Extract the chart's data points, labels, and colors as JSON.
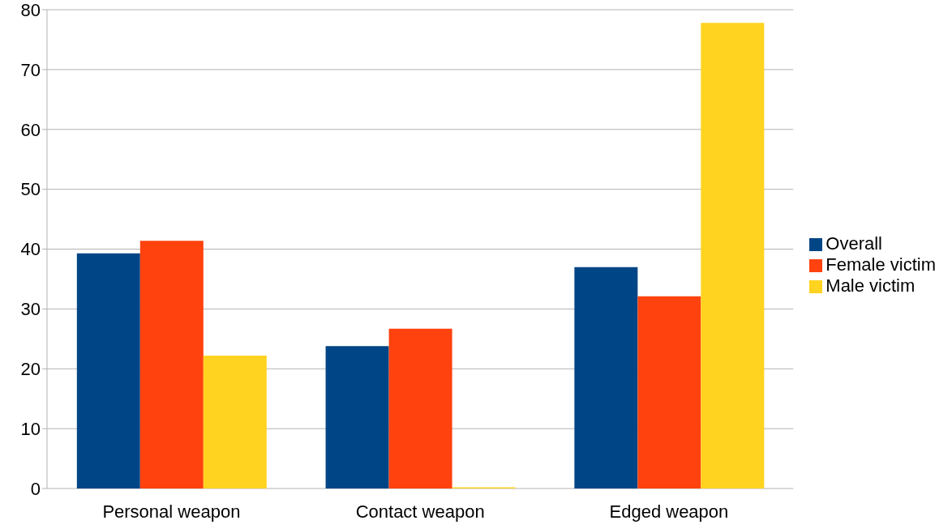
{
  "chart_data": {
    "type": "bar",
    "categories": [
      "Personal weapon",
      "Contact weapon",
      "Edged weapon"
    ],
    "series": [
      {
        "name": "Overall",
        "color": "#004586",
        "values": [
          39.3,
          23.8,
          37.0
        ]
      },
      {
        "name": "Female victim",
        "color": "#ff420e",
        "values": [
          41.4,
          26.7,
          32.1
        ]
      },
      {
        "name": "Male victim",
        "color": "#ffd320",
        "values": [
          22.2,
          0.2,
          77.8
        ]
      }
    ],
    "ylim": [
      0,
      80
    ],
    "yticks": [
      0,
      10,
      20,
      30,
      40,
      50,
      60,
      70,
      80
    ],
    "grid": "y",
    "legend": "right"
  }
}
